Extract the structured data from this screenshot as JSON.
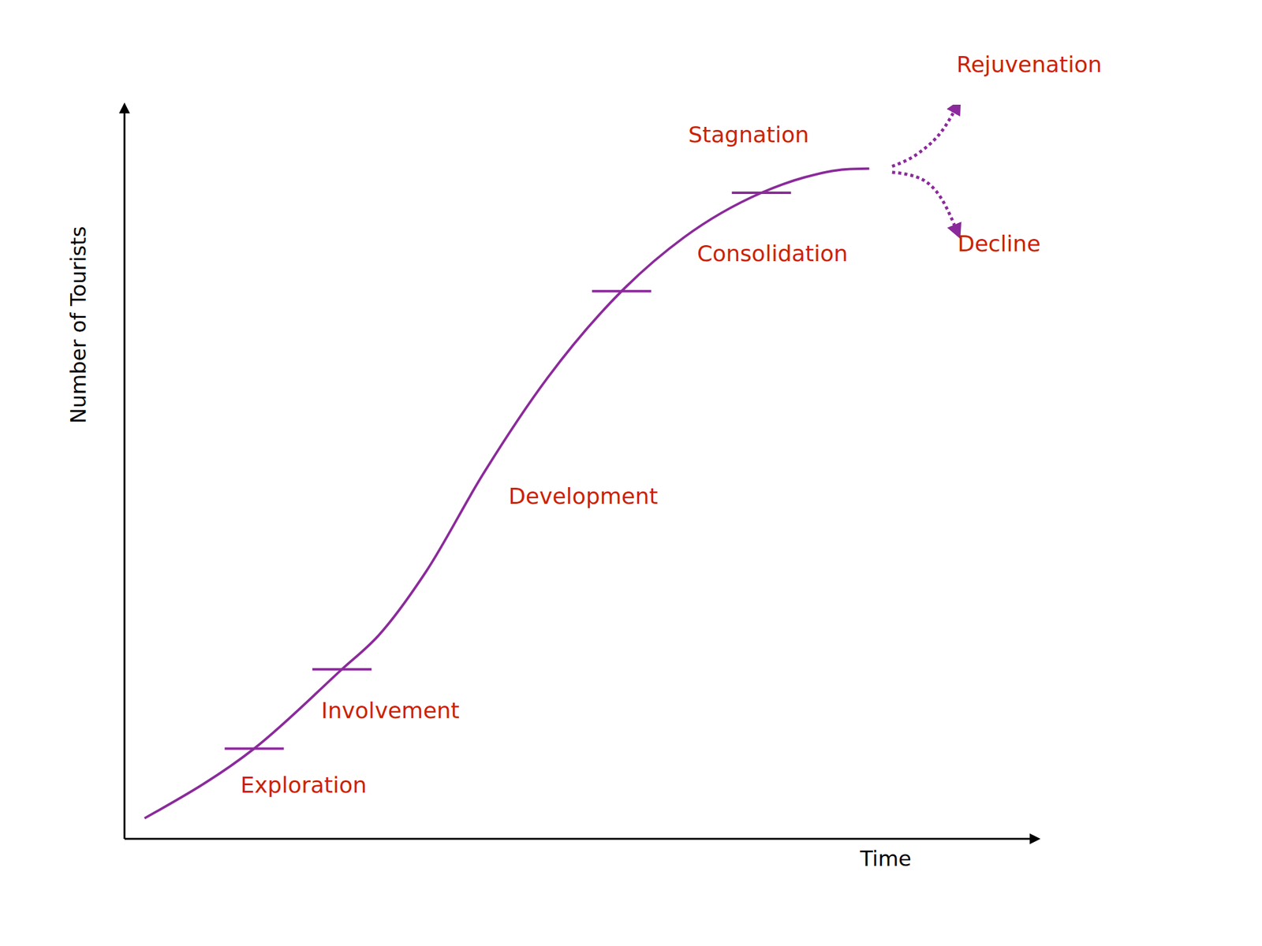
{
  "chart_data": {
    "type": "line",
    "x_label": "Time",
    "y_label": "Number of Tourists",
    "xlim": [
      0,
      100
    ],
    "ylim": [
      0,
      100
    ],
    "xticks": [],
    "yticks": [],
    "tick_labels": false,
    "grid": false,
    "series": [
      {
        "type": "line",
        "color": "#8b2a9b",
        "line_style": "solid",
        "x": [
          2.2,
          14.2,
          23.8,
          27.8,
          33.0,
          39.2,
          46.3,
          54.4,
          61.2,
          69.7,
          74.4,
          78.9,
          81.5
        ],
        "values": [
          2.8,
          12.3,
          23.1,
          27.7,
          36.4,
          49.6,
          62.8,
          74.6,
          81.9,
          88.0,
          90.1,
          91.2,
          91.3
        ]
      },
      {
        "type": "line",
        "color": "#8b2a9b",
        "line_style": "dotted",
        "marker": "arrow",
        "x": [
          84.0,
          87.0,
          89.5,
          91.2
        ],
        "values": [
          91.6,
          93.5,
          96.5,
          100
        ]
      },
      {
        "type": "line",
        "color": "#8b2a9b",
        "line_style": "dotted",
        "marker": "arrow",
        "x": [
          84.0,
          87.0,
          89.5,
          91.2
        ],
        "values": [
          90.8,
          90.0,
          87.0,
          82.5
        ]
      },
      {
        "type": "scatter",
        "color": "#8b2a9b",
        "marker": "hline",
        "x": [
          14.2,
          23.8,
          54.4,
          69.7
        ],
        "values": [
          12.3,
          23.1,
          74.6,
          88.0
        ]
      }
    ],
    "annotations": [
      {
        "text": "Exploration",
        "x": 19.6,
        "y": 7.3,
        "color": "#cc2200"
      },
      {
        "text": "Involvement",
        "x": 29.1,
        "y": 17.5,
        "color": "#cc2200"
      },
      {
        "text": "Development",
        "x": 50.2,
        "y": 46.7,
        "color": "#cc2200"
      },
      {
        "text": "Consolidation",
        "x": 70.9,
        "y": 79.7,
        "color": "#cc2200"
      },
      {
        "text": "Stagnation",
        "x": 68.3,
        "y": 95.9,
        "color": "#cc2200"
      },
      {
        "text": "Rejuvenation",
        "x": 99.0,
        "y": 105.5,
        "color": "#cc2200"
      },
      {
        "text": "Decline",
        "x": 95.7,
        "y": 81.1,
        "color": "#cc2200"
      }
    ]
  }
}
